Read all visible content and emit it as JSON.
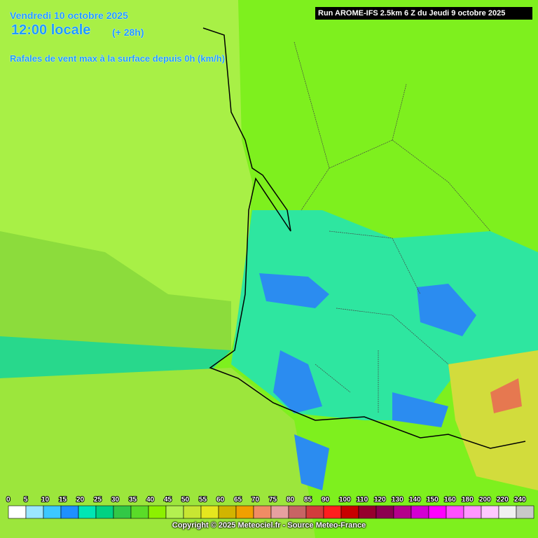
{
  "header": {
    "date": "Vendredi 10 octobre 2025",
    "time": "12:00 locale",
    "lead": "(+ 28h)",
    "parameter": "Rafales de vent max à la surface depuis 0h (km/h)",
    "run": "Run AROME-IFS 2.5km 6 Z du Jeudi 9 octobre 2025"
  },
  "legend": {
    "labels": [
      0,
      5,
      10,
      15,
      20,
      25,
      30,
      35,
      40,
      45,
      50,
      55,
      60,
      65,
      70,
      75,
      80,
      85,
      90,
      100,
      110,
      120,
      130,
      140,
      150,
      160,
      180,
      200,
      220,
      240
    ],
    "colors": [
      "#ffffff",
      "#9be6ff",
      "#3cc8ff",
      "#1e90ff",
      "#00e6b4",
      "#00d282",
      "#32c846",
      "#5adc28",
      "#8cf000",
      "#b4f050",
      "#c8e632",
      "#e6e61e",
      "#d2b400",
      "#f0a000",
      "#f08c64",
      "#e6a0a0",
      "#c86464",
      "#d23c3c",
      "#ff1e1e",
      "#c80000",
      "#96002d",
      "#8c0050",
      "#b4008c",
      "#d200d2",
      "#ff00ff",
      "#ff50ff",
      "#ff96ff",
      "#ffc8ff",
      "#f0f0f0",
      "#c8c8c8"
    ]
  },
  "footer": {
    "copyright": "Copyright © 2025 Meteociel.fr - Source Meteo-France"
  }
}
